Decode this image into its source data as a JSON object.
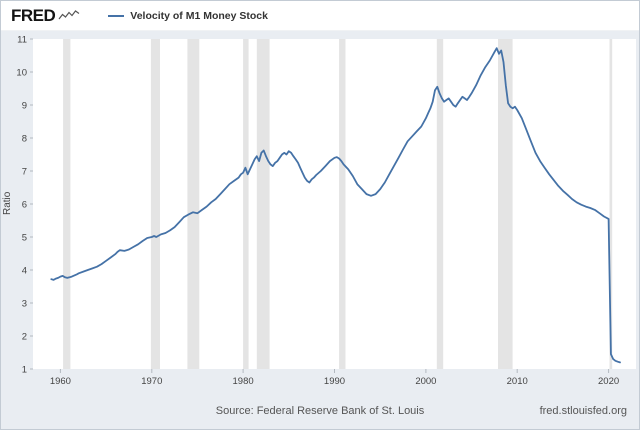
{
  "header": {
    "logo_text": "FRED",
    "logo_icon": "sparkline-icon"
  },
  "legend": {
    "label": "Velocity of M1 Money Stock",
    "line_color": "#4572a7"
  },
  "footer": {
    "source": "Source: Federal Reserve Bank of St. Louis",
    "site": "fred.stlouisfed.org"
  },
  "chart_data": {
    "type": "line",
    "title": "Velocity of M1 Money Stock",
    "xlabel": "",
    "ylabel": "Ratio",
    "xlim": [
      1957,
      2023
    ],
    "ylim": [
      1,
      11
    ],
    "xticks": [
      1960,
      1970,
      1980,
      1990,
      2000,
      2010,
      2020
    ],
    "yticks": [
      1,
      2,
      3,
      4,
      5,
      6,
      7,
      8,
      9,
      10,
      11
    ],
    "grid": false,
    "legend_position": "top-left",
    "line_color": "#4572a7",
    "band_color": "#e4e4e4",
    "recessions": [
      [
        1960.3,
        1961.1
      ],
      [
        1969.9,
        1970.9
      ],
      [
        1973.9,
        1975.2
      ],
      [
        1980.0,
        1980.6
      ],
      [
        1981.5,
        1982.9
      ],
      [
        1990.5,
        1991.2
      ],
      [
        2001.2,
        2001.9
      ],
      [
        2007.9,
        2009.5
      ],
      [
        2020.1,
        2020.4
      ]
    ],
    "series": [
      {
        "name": "Velocity of M1 Money Stock",
        "points": [
          [
            1959,
            3.72
          ],
          [
            1959.25,
            3.7
          ],
          [
            1959.5,
            3.74
          ],
          [
            1959.75,
            3.76
          ],
          [
            1960,
            3.8
          ],
          [
            1960.25,
            3.82
          ],
          [
            1960.5,
            3.78
          ],
          [
            1960.75,
            3.76
          ],
          [
            1961,
            3.78
          ],
          [
            1961.25,
            3.8
          ],
          [
            1961.5,
            3.83
          ],
          [
            1961.75,
            3.86
          ],
          [
            1962,
            3.9
          ],
          [
            1962.5,
            3.95
          ],
          [
            1963,
            4.0
          ],
          [
            1963.5,
            4.05
          ],
          [
            1964,
            4.1
          ],
          [
            1964.5,
            4.18
          ],
          [
            1965,
            4.28
          ],
          [
            1965.5,
            4.38
          ],
          [
            1966,
            4.48
          ],
          [
            1966.25,
            4.55
          ],
          [
            1966.5,
            4.6
          ],
          [
            1967,
            4.58
          ],
          [
            1967.5,
            4.62
          ],
          [
            1968,
            4.7
          ],
          [
            1968.5,
            4.78
          ],
          [
            1969,
            4.88
          ],
          [
            1969.5,
            4.97
          ],
          [
            1970,
            5.0
          ],
          [
            1970.25,
            5.03
          ],
          [
            1970.5,
            5.0
          ],
          [
            1971,
            5.08
          ],
          [
            1971.5,
            5.12
          ],
          [
            1972,
            5.2
          ],
          [
            1972.5,
            5.3
          ],
          [
            1973,
            5.45
          ],
          [
            1973.5,
            5.6
          ],
          [
            1974,
            5.68
          ],
          [
            1974.5,
            5.75
          ],
          [
            1975,
            5.72
          ],
          [
            1975.5,
            5.82
          ],
          [
            1976,
            5.92
          ],
          [
            1976.5,
            6.05
          ],
          [
            1977,
            6.15
          ],
          [
            1977.5,
            6.3
          ],
          [
            1978,
            6.45
          ],
          [
            1978.5,
            6.6
          ],
          [
            1979,
            6.7
          ],
          [
            1979.5,
            6.8
          ],
          [
            1979.75,
            6.9
          ],
          [
            1980,
            6.95
          ],
          [
            1980.25,
            7.1
          ],
          [
            1980.5,
            6.9
          ],
          [
            1980.75,
            7.05
          ],
          [
            1981,
            7.2
          ],
          [
            1981.25,
            7.35
          ],
          [
            1981.5,
            7.45
          ],
          [
            1981.75,
            7.3
          ],
          [
            1982,
            7.55
          ],
          [
            1982.25,
            7.62
          ],
          [
            1982.5,
            7.45
          ],
          [
            1982.75,
            7.3
          ],
          [
            1983,
            7.2
          ],
          [
            1983.25,
            7.15
          ],
          [
            1983.5,
            7.25
          ],
          [
            1983.75,
            7.3
          ],
          [
            1984,
            7.4
          ],
          [
            1984.25,
            7.5
          ],
          [
            1984.5,
            7.55
          ],
          [
            1984.75,
            7.5
          ],
          [
            1985,
            7.6
          ],
          [
            1985.25,
            7.55
          ],
          [
            1985.5,
            7.45
          ],
          [
            1985.75,
            7.35
          ],
          [
            1986,
            7.25
          ],
          [
            1986.25,
            7.1
          ],
          [
            1986.5,
            6.95
          ],
          [
            1986.75,
            6.8
          ],
          [
            1987,
            6.7
          ],
          [
            1987.25,
            6.65
          ],
          [
            1987.5,
            6.75
          ],
          [
            1987.75,
            6.8
          ],
          [
            1988,
            6.88
          ],
          [
            1988.5,
            7.0
          ],
          [
            1989,
            7.15
          ],
          [
            1989.5,
            7.3
          ],
          [
            1990,
            7.4
          ],
          [
            1990.25,
            7.42
          ],
          [
            1990.5,
            7.38
          ],
          [
            1990.75,
            7.3
          ],
          [
            1991,
            7.2
          ],
          [
            1991.5,
            7.05
          ],
          [
            1992,
            6.85
          ],
          [
            1992.5,
            6.6
          ],
          [
            1993,
            6.45
          ],
          [
            1993.5,
            6.3
          ],
          [
            1994,
            6.25
          ],
          [
            1994.5,
            6.3
          ],
          [
            1995,
            6.45
          ],
          [
            1995.5,
            6.65
          ],
          [
            1996,
            6.9
          ],
          [
            1996.5,
            7.15
          ],
          [
            1997,
            7.4
          ],
          [
            1997.5,
            7.65
          ],
          [
            1998,
            7.9
          ],
          [
            1998.5,
            8.05
          ],
          [
            1999,
            8.2
          ],
          [
            1999.5,
            8.35
          ],
          [
            2000,
            8.6
          ],
          [
            2000.25,
            8.75
          ],
          [
            2000.5,
            8.9
          ],
          [
            2000.75,
            9.1
          ],
          [
            2001,
            9.45
          ],
          [
            2001.25,
            9.55
          ],
          [
            2001.5,
            9.35
          ],
          [
            2001.75,
            9.2
          ],
          [
            2002,
            9.1
          ],
          [
            2002.25,
            9.15
          ],
          [
            2002.5,
            9.2
          ],
          [
            2002.75,
            9.1
          ],
          [
            2003,
            9.0
          ],
          [
            2003.25,
            8.95
          ],
          [
            2003.5,
            9.05
          ],
          [
            2003.75,
            9.15
          ],
          [
            2004,
            9.25
          ],
          [
            2004.25,
            9.2
          ],
          [
            2004.5,
            9.15
          ],
          [
            2004.75,
            9.25
          ],
          [
            2005,
            9.35
          ],
          [
            2005.5,
            9.6
          ],
          [
            2006,
            9.9
          ],
          [
            2006.5,
            10.15
          ],
          [
            2007,
            10.35
          ],
          [
            2007.5,
            10.6
          ],
          [
            2007.75,
            10.72
          ],
          [
            2008,
            10.55
          ],
          [
            2008.25,
            10.65
          ],
          [
            2008.5,
            10.3
          ],
          [
            2008.75,
            9.6
          ],
          [
            2009,
            9.05
          ],
          [
            2009.25,
            8.95
          ],
          [
            2009.5,
            8.9
          ],
          [
            2009.75,
            8.95
          ],
          [
            2010,
            8.85
          ],
          [
            2010.5,
            8.6
          ],
          [
            2011,
            8.25
          ],
          [
            2011.5,
            7.9
          ],
          [
            2012,
            7.55
          ],
          [
            2012.5,
            7.3
          ],
          [
            2013,
            7.1
          ],
          [
            2013.5,
            6.9
          ],
          [
            2014,
            6.72
          ],
          [
            2014.5,
            6.55
          ],
          [
            2015,
            6.4
          ],
          [
            2015.5,
            6.28
          ],
          [
            2016,
            6.15
          ],
          [
            2016.5,
            6.05
          ],
          [
            2017,
            5.98
          ],
          [
            2017.5,
            5.92
          ],
          [
            2018,
            5.88
          ],
          [
            2018.5,
            5.82
          ],
          [
            2019,
            5.72
          ],
          [
            2019.5,
            5.62
          ],
          [
            2020,
            5.55
          ],
          [
            2020.25,
            1.45
          ],
          [
            2020.5,
            1.3
          ],
          [
            2020.75,
            1.25
          ],
          [
            2021,
            1.22
          ],
          [
            2021.25,
            1.2
          ]
        ]
      }
    ]
  }
}
